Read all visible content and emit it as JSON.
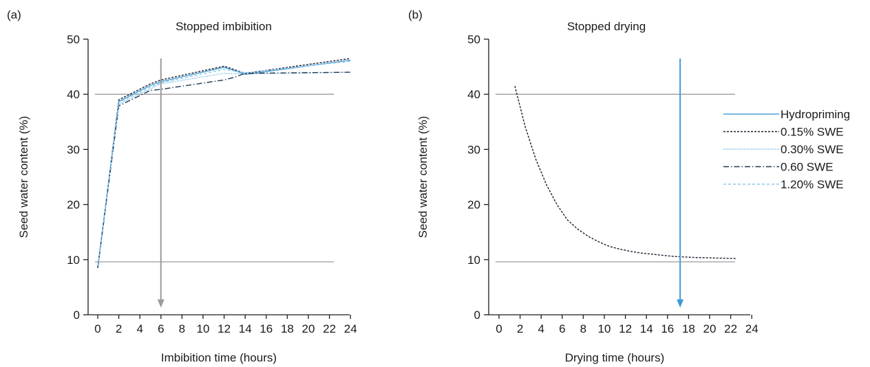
{
  "chart_data": [
    {
      "type": "line",
      "panel_label": "(a)",
      "title": "Stopped imbibition",
      "xlabel": "Imbibition time (hours)",
      "ylabel": "Seed water content (%)",
      "xlim": [
        -1,
        24
      ],
      "ylim": [
        0,
        50
      ],
      "xticks": [
        0,
        2,
        4,
        6,
        8,
        10,
        12,
        14,
        16,
        18,
        20,
        22,
        24
      ],
      "yticks": [
        0,
        10,
        20,
        30,
        40,
        50
      ],
      "reference_lines_y": [
        40,
        9.6
      ],
      "arrow": {
        "x": 6,
        "y_from": 46.5,
        "y_to": 1.3,
        "color": "#9a9a9a"
      },
      "series": [
        {
          "x": [
            0,
            2,
            5,
            6,
            12,
            14,
            24
          ],
          "values": [
            8.5,
            39.0,
            41.9,
            42.6,
            45.1,
            43.8,
            46.5
          ],
          "color": "#1a1a2e",
          "dash": "3,2"
        },
        {
          "x": [
            0,
            2,
            5,
            6,
            12,
            13,
            14,
            24
          ],
          "values": [
            8.6,
            38.7,
            41.6,
            42.3,
            44.9,
            44.3,
            43.6,
            46.2
          ],
          "color": "#4a9fd6",
          "dash": ""
        },
        {
          "x": [
            0,
            2,
            5,
            6,
            12,
            14,
            24
          ],
          "values": [
            8.7,
            38.2,
            41.0,
            41.9,
            43.8,
            43.7,
            44.0
          ],
          "color": "#5aaee0",
          "dash": "1,1.5"
        },
        {
          "x": [
            0,
            2,
            5,
            6,
            12,
            13,
            14,
            24
          ],
          "values": [
            8.5,
            37.9,
            40.7,
            40.9,
            42.6,
            43.1,
            43.8,
            44.0
          ],
          "color": "#1f3550",
          "dash": "8,3,1.5,3"
        },
        {
          "x": [
            0,
            2,
            5,
            6,
            12,
            14,
            24
          ],
          "values": [
            8.9,
            38.5,
            41.3,
            42.1,
            44.5,
            43.9,
            46.0
          ],
          "color": "#8fc8ec",
          "dash": "4,3"
        }
      ]
    },
    {
      "type": "line",
      "panel_label": "(b)",
      "title": "Stopped drying",
      "xlabel": "Drying time (hours)",
      "ylabel": "Seed water content (%)",
      "xlim": [
        -1,
        24
      ],
      "ylim": [
        0,
        50
      ],
      "xticks": [
        0,
        2,
        4,
        6,
        8,
        10,
        12,
        14,
        16,
        18,
        20,
        22,
        24
      ],
      "yticks": [
        0,
        10,
        20,
        30,
        40,
        50
      ],
      "reference_lines_y": [
        40,
        9.6
      ],
      "arrow": {
        "x": 17.2,
        "y_from": 46.5,
        "y_to": 1.3,
        "color": "#3c9ad6"
      },
      "series": [
        {
          "x": [
            1.5,
            2.5,
            3.5,
            4.5,
            5.5,
            6.5,
            7.5,
            8.5,
            9.5,
            10.5,
            11.5,
            12.5,
            13.5,
            14.5,
            15.5,
            16.5,
            17.5,
            18.5,
            19.5,
            20.5,
            21.5,
            22.5
          ],
          "values": [
            41.5,
            34.0,
            28.2,
            23.6,
            20.0,
            17.2,
            15.5,
            14.2,
            13.2,
            12.4,
            11.9,
            11.5,
            11.2,
            11.0,
            10.8,
            10.6,
            10.5,
            10.4,
            10.35,
            10.3,
            10.25,
            10.2
          ],
          "color": "#1a1a2e",
          "dash": "3,2"
        }
      ],
      "legend": {
        "placement": "right",
        "entries": [
          {
            "label": "Hydropriming",
            "color": "#4a9fd6",
            "dash": ""
          },
          {
            "label": "0.15% SWE",
            "color": "#1a1a2e",
            "dash": "3,2"
          },
          {
            "label": "0.30% SWE",
            "color": "#5aaee0",
            "dash": "1,1.5"
          },
          {
            "label": "0.60 SWE",
            "color": "#1f3550",
            "dash": "8,3,1.5,3"
          },
          {
            "label": "1.20% SWE",
            "color": "#8fc8ec",
            "dash": "4,3"
          }
        ]
      }
    }
  ]
}
